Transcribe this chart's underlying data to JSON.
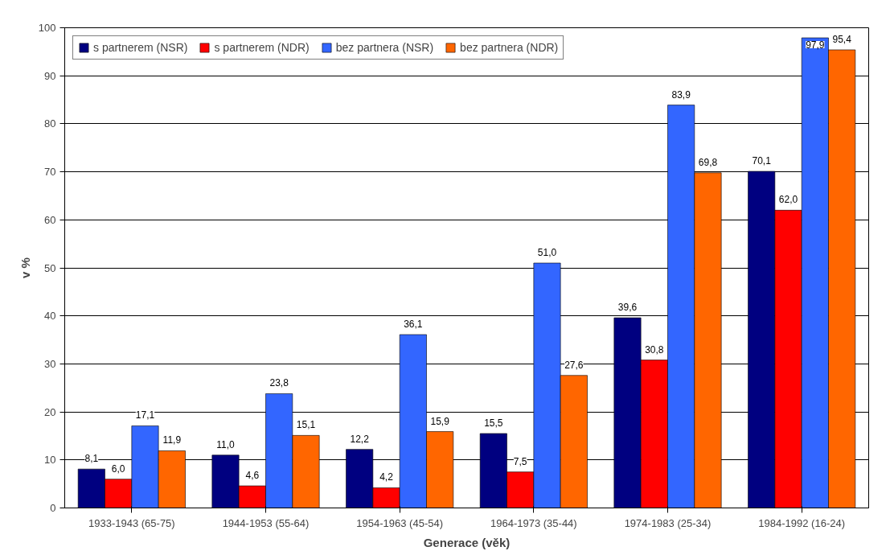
{
  "chart_data": {
    "type": "bar",
    "xlabel": "Generace (věk)",
    "ylabel": "v %",
    "categories": [
      "1933-1943 (65-75)",
      "1944-1953 (55-64)",
      "1954-1963 (45-54)",
      "1964-1973 (35-44)",
      "1974-1983 (25-34)",
      "1984-1992 (16-24)"
    ],
    "series": [
      {
        "name": "s partnerem (NSR)",
        "color": "#000080",
        "values": [
          8.1,
          11.0,
          12.2,
          15.5,
          39.6,
          70.1
        ],
        "value_labels": [
          "8,1",
          "11,0",
          "12,2",
          "15,5",
          "39,6",
          "70,1"
        ]
      },
      {
        "name": "s partnerem (NDR)",
        "color": "#ff0000",
        "values": [
          6.0,
          4.6,
          4.2,
          7.5,
          30.8,
          62.0
        ],
        "value_labels": [
          "6,0",
          "4,6",
          "4,2",
          "7,5",
          "30,8",
          "62,0"
        ]
      },
      {
        "name": "bez partnera (NSR)",
        "color": "#3366ff",
        "values": [
          17.1,
          23.8,
          36.1,
          51.0,
          83.9,
          97.9
        ],
        "value_labels": [
          "17,1",
          "23,8",
          "36,1",
          "51,0",
          "83,9",
          "97,9"
        ]
      },
      {
        "name": "bez partnera (NDR)",
        "color": "#ff6600",
        "values": [
          11.9,
          15.1,
          15.9,
          27.6,
          69.8,
          95.4
        ],
        "value_labels": [
          "11,9",
          "15,1",
          "15,9",
          "27,6",
          "69,8",
          "95,4"
        ]
      }
    ],
    "ylim": [
      0,
      100
    ],
    "yticks": [
      0,
      10,
      20,
      30,
      40,
      50,
      60,
      70,
      80,
      90,
      100
    ],
    "grid": "y",
    "legend": "top left"
  }
}
